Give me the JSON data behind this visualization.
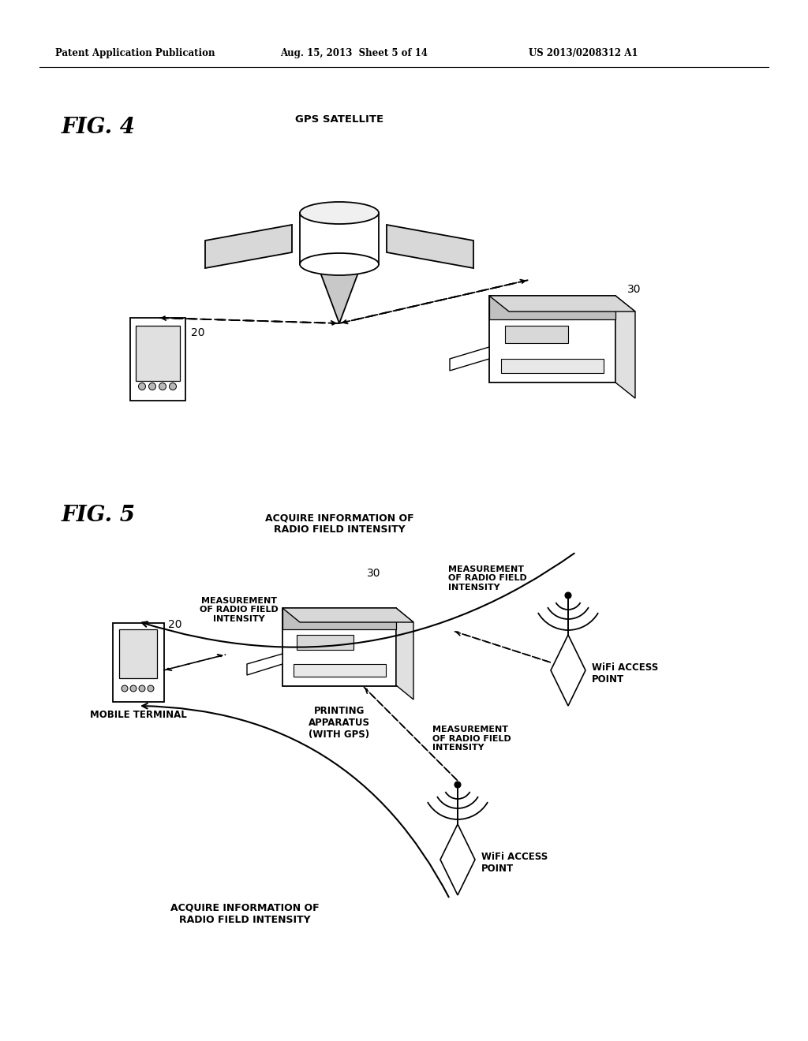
{
  "background_color": "#ffffff",
  "header_left": "Patent Application Publication",
  "header_mid": "Aug. 15, 2013  Sheet 5 of 14",
  "header_right": "US 2013/0208312 A1",
  "fig4_label": "FIG. 4",
  "fig5_label": "FIG. 5",
  "gps_label": "GPS SATELLITE",
  "label_20_fig4": "20",
  "label_30_fig4": "30",
  "label_20_fig5": "20",
  "label_30_fig5": "30",
  "mobile_terminal_label": "MOBILE TERMINAL",
  "printing_apparatus_label": "PRINTING\nAPPARATUS\n(WITH GPS)",
  "wifi_ap1_label": "WiFi ACCESS\nPOINT",
  "wifi_ap2_label": "WiFi ACCESS\nPOINT",
  "measurement1_label": "MEASUREMENT\nOF RADIO FIELD\nINTENSITY",
  "measurement2_label": "MEASUREMENT\nOF RADIO FIELD\nINTENSITY",
  "measurement3_label": "MEASUREMENT\nOF RADIO FIELD\nINTENSITY",
  "acquire1_label": "ACQUIRE INFORMATION OF\nRADIO FIELD INTENSITY",
  "acquire2_label": "ACQUIRE INFORMATION OF\nRADIO FIELD INTENSITY"
}
